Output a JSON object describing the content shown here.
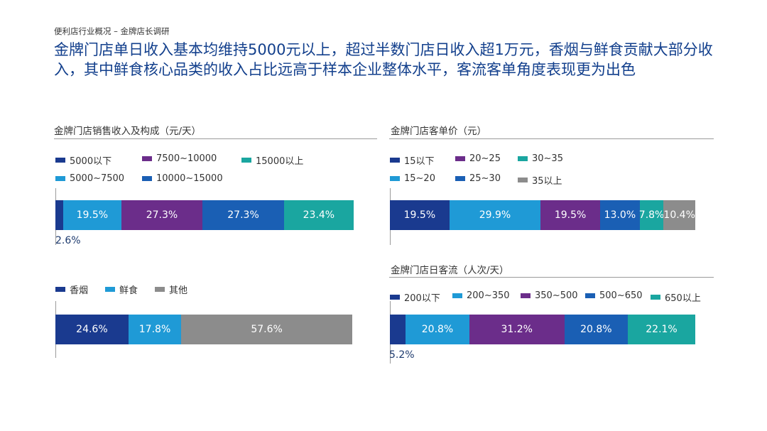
{
  "header": {
    "breadcrumb": "便利店行业概况 – 金牌店长调研",
    "headline": "金牌门店单日收入基本均维持5000元以上，超过半数门店日收入超1万元，香烟与鲜食贡献大部分收入，其中鲜食核心品类的收入占比远高于样本企业整体水平，客流客单角度表现更为出色"
  },
  "chart_data": [
    {
      "type": "bar",
      "orientation": "horizontal-stacked-100",
      "title": "金牌门店销售收入及构成（元/天）",
      "categories": [
        "5000以下",
        "5000~7500",
        "7500~10000",
        "10000~15000",
        "15000以上"
      ],
      "legend_rows": [
        [
          "5000以下",
          "7500~10000",
          "15000以上"
        ],
        [
          "5000~7500",
          "10000~15000"
        ]
      ],
      "values": [
        2.6,
        19.5,
        27.3,
        27.3,
        23.4
      ],
      "labels": [
        "2.6%",
        "19.5%",
        "27.3%",
        "27.3%",
        "23.4%"
      ],
      "colors": [
        "#1a3a8f",
        "#1f9ad6",
        "#6b2d8a",
        "#1a5fb4",
        "#1aa6a0"
      ]
    },
    {
      "type": "bar",
      "orientation": "horizontal-stacked-100",
      "title": "",
      "categories": [
        "香烟",
        "鲜食",
        "其他"
      ],
      "legend_rows": [
        [
          "香烟",
          "鲜食",
          "其他"
        ]
      ],
      "values": [
        24.6,
        17.8,
        57.6
      ],
      "labels": [
        "24.6%",
        "17.8%",
        "57.6%"
      ],
      "colors": [
        "#1a3a8f",
        "#1f9ad6",
        "#8c8c8c"
      ]
    },
    {
      "type": "bar",
      "orientation": "horizontal-stacked-100",
      "title": "金牌门店客单价（元）",
      "categories": [
        "15以下",
        "15~20",
        "20~25",
        "25~30",
        "30~35",
        "35以上"
      ],
      "legend_rows": [
        [
          "15以下",
          "20~25",
          "30~35"
        ],
        [
          "15~20",
          "25~30",
          "35以上"
        ]
      ],
      "values": [
        19.5,
        29.9,
        19.5,
        13.0,
        7.8,
        10.4
      ],
      "labels": [
        "19.5%",
        "29.9%",
        "19.5%",
        "13.0%",
        "7.8%",
        "10.4%"
      ],
      "colors": [
        "#1a3a8f",
        "#1f9ad6",
        "#6b2d8a",
        "#1a5fb4",
        "#1aa6a0",
        "#8c8c8c"
      ]
    },
    {
      "type": "bar",
      "orientation": "horizontal-stacked-100",
      "title": "金牌门店日客流（人次/天）",
      "categories": [
        "200以下",
        "200~350",
        "350~500",
        "500~650",
        "650以上"
      ],
      "legend_rows": [
        [
          "200以下",
          "200~350",
          "350~500",
          "500~650",
          "650以上"
        ]
      ],
      "values": [
        5.2,
        20.8,
        31.2,
        20.8,
        22.1
      ],
      "labels": [
        "5.2%",
        "20.8%",
        "31.2%",
        "20.8%",
        "22.1%"
      ],
      "colors": [
        "#1a3a8f",
        "#1f9ad6",
        "#6b2d8a",
        "#1a5fb4",
        "#1aa6a0"
      ]
    }
  ]
}
